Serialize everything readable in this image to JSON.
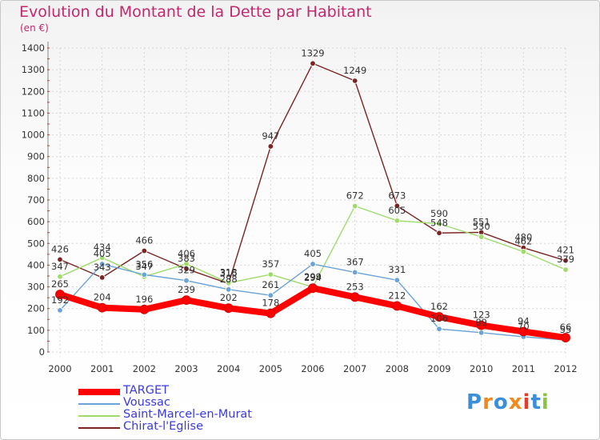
{
  "title": "Evolution du Montant de la Dette par Habitant",
  "subtitle": "(en €)",
  "logo_text": "Proxiti",
  "chart_data": {
    "type": "line",
    "title": "Evolution du Montant de la Dette par Habitant",
    "subtitle": "(en €)",
    "xlabel": "",
    "ylabel": "",
    "x": [
      2000,
      2001,
      2002,
      2003,
      2004,
      2005,
      2006,
      2007,
      2008,
      2009,
      2010,
      2011,
      2012
    ],
    "yticks": [
      0,
      100,
      200,
      300,
      400,
      500,
      600,
      700,
      800,
      900,
      1000,
      1100,
      1200,
      1300,
      1400
    ],
    "ylim": [
      0,
      1400
    ],
    "grid": true,
    "legend_position": "bottom-left",
    "series": [
      {
        "name": "TARGET",
        "color": "#ff0000",
        "values": [
          265,
          204,
          196,
          239,
          202,
          178,
          294,
          253,
          212,
          162,
          123,
          94,
          66
        ]
      },
      {
        "name": "Voussac",
        "color": "#6aa3d6",
        "values": [
          192,
          405,
          356,
          329,
          288,
          261,
          405,
          367,
          331,
          106,
          89,
          70,
          55
        ]
      },
      {
        "name": "Saint-Marcel-en-Murat",
        "color": "#9fdb6a",
        "values": [
          347,
          434,
          347,
          406,
          318,
          357,
          299,
          672,
          605,
          590,
          530,
          462,
          379
        ]
      },
      {
        "name": "Chirat-l'Eglise",
        "color": "#7a2424",
        "values": [
          426,
          343,
          466,
          383,
          315,
          947,
          1329,
          1249,
          673,
          548,
          551,
          480,
          421
        ]
      }
    ]
  }
}
